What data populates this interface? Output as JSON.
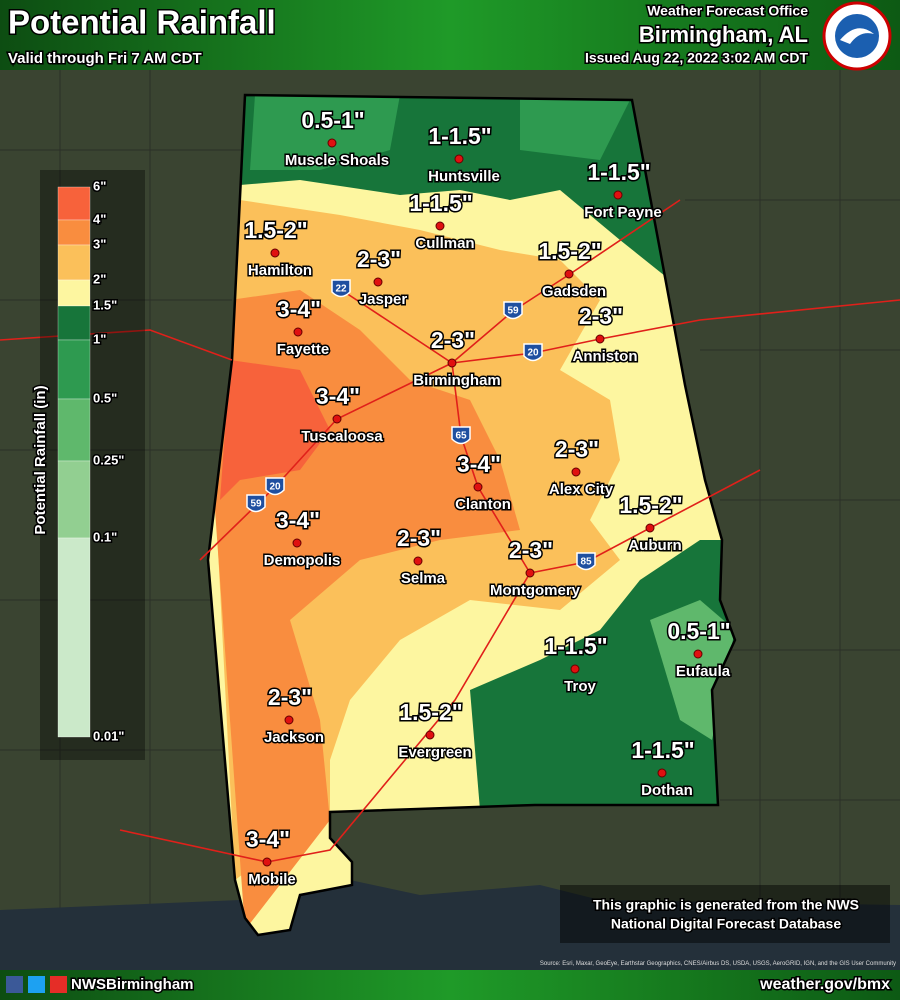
{
  "header": {
    "title": "Potential Rainfall",
    "subtitle": "Valid through Fri 7 AM CDT",
    "office": "Weather Forecast Office",
    "location": "Birmingham, AL",
    "issued": "Issued Aug 22, 2022 3:02 AM CDT"
  },
  "legend": {
    "title": "Potential Rainfall (in)",
    "labels": [
      "6\"",
      "4\"",
      "3\"",
      "2\"",
      "1.5\"",
      "1\"",
      "0.5\"",
      "0.25\"",
      "0.1\"",
      "0.01\""
    ],
    "colors": [
      "#f7623b",
      "#f98d3f",
      "#fbc05a",
      "#fdf6a0",
      "#17753a",
      "#2e9a50",
      "#5fb86c",
      "#92cf91",
      "#cbe9c9"
    ]
  },
  "cities": [
    {
      "name": "Muscle Shoals",
      "amount": "0.5-1\""
    },
    {
      "name": "Huntsville",
      "amount": "1-1.5\""
    },
    {
      "name": "Fort Payne",
      "amount": "1-1.5\""
    },
    {
      "name": "Cullman",
      "amount": "1-1.5\""
    },
    {
      "name": "Hamilton",
      "amount": "1.5-2\""
    },
    {
      "name": "Gadsden",
      "amount": "1.5-2\""
    },
    {
      "name": "Jasper",
      "amount": "2-3\""
    },
    {
      "name": "Fayette",
      "amount": "3-4\""
    },
    {
      "name": "Anniston",
      "amount": "2-3\""
    },
    {
      "name": "Birmingham",
      "amount": "2-3\""
    },
    {
      "name": "Tuscaloosa",
      "amount": "3-4\""
    },
    {
      "name": "Alex City",
      "amount": "2-3\""
    },
    {
      "name": "Clanton",
      "amount": "3-4\""
    },
    {
      "name": "Auburn",
      "amount": "1.5-2\""
    },
    {
      "name": "Demopolis",
      "amount": "3-4\""
    },
    {
      "name": "Selma",
      "amount": "2-3\""
    },
    {
      "name": "Montgomery",
      "amount": "2-3\""
    },
    {
      "name": "Troy",
      "amount": "1-1.5\""
    },
    {
      "name": "Eufaula",
      "amount": "0.5-1\""
    },
    {
      "name": "Jackson",
      "amount": "2-3\""
    },
    {
      "name": "Evergreen",
      "amount": "1.5-2\""
    },
    {
      "name": "Dothan",
      "amount": "1-1.5\""
    },
    {
      "name": "Mobile",
      "amount": "3-4\""
    }
  ],
  "interstates": [
    "22",
    "59",
    "20",
    "65",
    "20",
    "59",
    "85"
  ],
  "footer": {
    "social": "NWSBirmingham",
    "url": "weather.gov/bmx",
    "note": [
      "This graphic is generated from the NWS",
      "National Digital Forecast Database"
    ],
    "source": "Source: Esri, Maxar, GeoEye, Earthstar Geographics, CNES/Airbus DS, USDA, USGS, AeroGRID, IGN, and the GIS User Community"
  }
}
